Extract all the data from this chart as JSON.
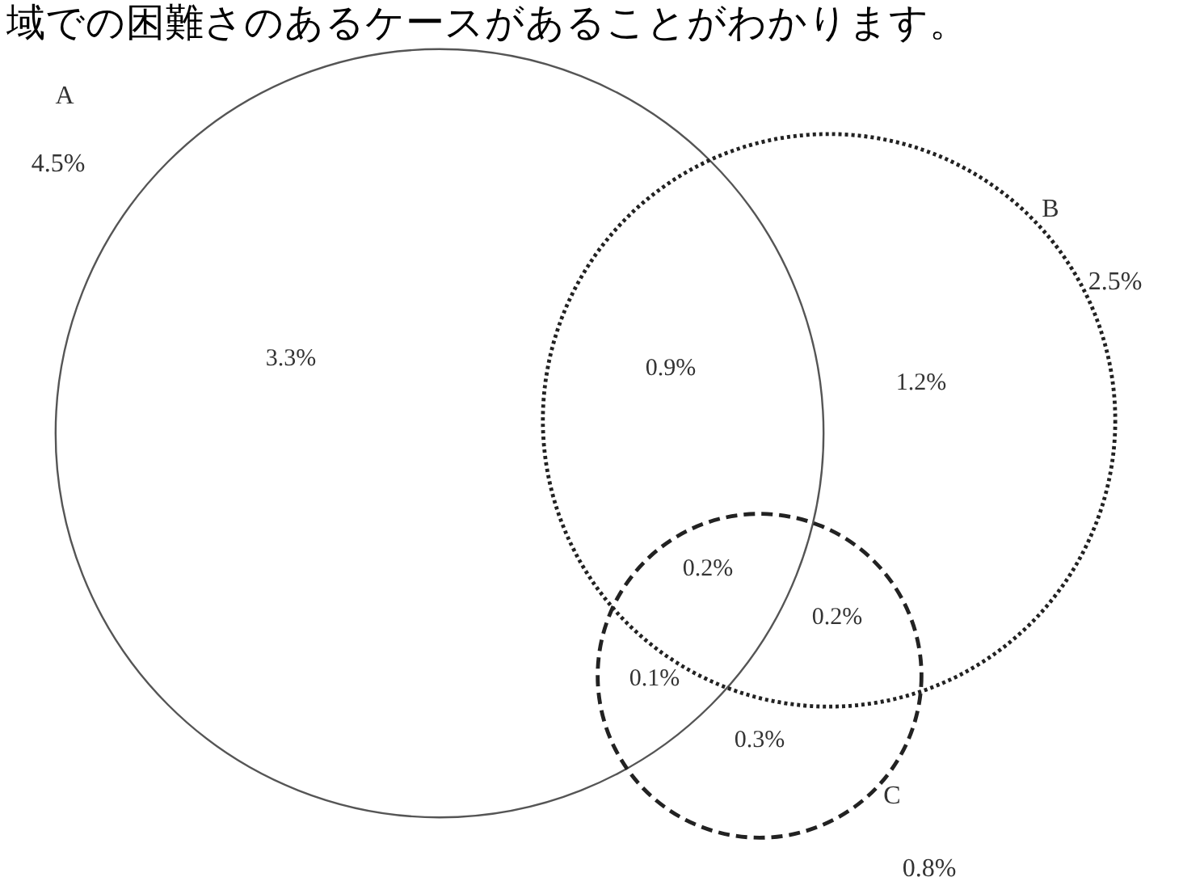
{
  "chart_data": {
    "type": "other",
    "title": "域での困難さのあるケースがあることがわかります。",
    "series": [
      {
        "name": "A",
        "color": "#555555",
        "values": [
          4.5
        ],
        "value_labels": [
          "4.5%"
        ],
        "line_style": "solid"
      },
      {
        "name": "B",
        "color": "#222222",
        "values": [
          2.5
        ],
        "value_labels": [
          "2.5%"
        ],
        "line_style": "dotted"
      },
      {
        "name": "C",
        "color": "#222222",
        "values": [
          0.8
        ],
        "value_labels": [
          "0.8%"
        ],
        "line_style": "dashed"
      }
    ],
    "annotations": [
      "3.3%",
      "0.9%",
      "1.2%",
      "0.2%",
      "0.2%",
      "0.1%",
      "0.3%"
    ]
  }
}
